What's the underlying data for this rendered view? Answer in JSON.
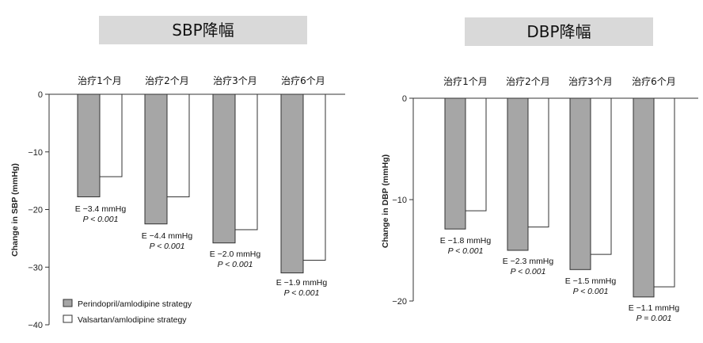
{
  "chart_data": [
    {
      "type": "bar",
      "title": "SBP降幅",
      "ylabel": "Change in SBP (mmHg)",
      "ylim": [
        -40,
        0
      ],
      "yticks": [
        0,
        -10,
        -20,
        -30,
        -40
      ],
      "categories": [
        "治疗1个月",
        "治疗2个月",
        "治疗3个月",
        "治疗6个月"
      ],
      "series": [
        {
          "name": "Perindopril/amlodipine strategy",
          "values": [
            -17.8,
            -22.5,
            -25.8,
            -31.0
          ],
          "color": "#a6a6a6"
        },
        {
          "name": "Valsartan/amlodipine strategy",
          "values": [
            -14.3,
            -17.8,
            -23.5,
            -28.8
          ],
          "color": "#ffffff"
        }
      ],
      "annotations": [
        {
          "e": "E −3.4 mmHg",
          "p": "P < 0.001"
        },
        {
          "e": "E −4.4 mmHg",
          "p": "P < 0.001"
        },
        {
          "e": "E −2.0 mmHg",
          "p": "P < 0.001"
        },
        {
          "e": "E −1.9 mmHg",
          "p": "P < 0.001"
        }
      ],
      "legend": "bottom-left"
    },
    {
      "type": "bar",
      "title": "DBP降幅",
      "ylabel": "Change in DBP (mmHg)",
      "ylim": [
        -20,
        0
      ],
      "yticks": [
        0,
        -10,
        -20
      ],
      "categories": [
        "治疗1个月",
        "治疗2个月",
        "治疗3个月",
        "治疗6个月"
      ],
      "series": [
        {
          "name": "Perindopril/amlodipine strategy",
          "values": [
            -12.9,
            -15.0,
            -16.9,
            -19.6
          ],
          "color": "#a6a6a6"
        },
        {
          "name": "Valsartan/amlodipine strategy",
          "values": [
            -11.1,
            -12.7,
            -15.4,
            -18.6
          ],
          "color": "#ffffff"
        }
      ],
      "annotations": [
        {
          "e": "E −1.8 mmHg",
          "p": "P < 0.001"
        },
        {
          "e": "E −2.3 mmHg",
          "p": "P < 0.001"
        },
        {
          "e": "E −1.5 mmHg",
          "p": "P < 0.001"
        },
        {
          "e": "E −1.1 mmHg",
          "p": "P = 0.001"
        }
      ]
    }
  ]
}
